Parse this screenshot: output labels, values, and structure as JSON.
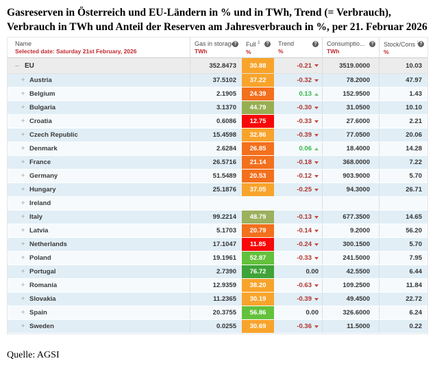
{
  "title": "Gasreserven in Österreich und EU-Ländern in % und in TWh, Trend (= Verbrauch), Verbrauch in TWh und Anteil der Reserven am Jahresverbrauch in %, per 21. Februar 2026",
  "source": "Quelle: AGSI",
  "icons": {
    "help": "?",
    "expand": "+",
    "collapse": "–"
  },
  "colors": {
    "orange": "#f8a42c",
    "dark_orange": "#f3701d",
    "red": "#f80808",
    "olive": "#97ae52",
    "green": "#64c13c",
    "dark_green": "#3fa338",
    "trend_down": "#b2342c",
    "trend_up": "#2fb847",
    "header_sub_red": "#c2282d",
    "row_blue": "#e1eef6",
    "row_white": "#f6fafc",
    "total_row": "#ececec"
  },
  "table": {
    "columns": [
      {
        "label": "Name",
        "sub": "Selected date: Saturday 21st February, 2026"
      },
      {
        "label": "Gas in storage",
        "sub": "TWh"
      },
      {
        "label": "Full",
        "sup": "1",
        "sub": "%"
      },
      {
        "label": "Trend",
        "sub": "%"
      },
      {
        "label": "Consumptio...",
        "sub": "TWh"
      },
      {
        "label": "Stock/Cons",
        "sup": "3",
        "sub": "%"
      }
    ],
    "rows": [
      {
        "name": "EU",
        "total": true,
        "gas": "352.8473",
        "full": "30.88",
        "full_color": "#f8a42c",
        "trend": "-0.21",
        "trend_dir": "down",
        "cons": "3519.0000",
        "stock": "10.03"
      },
      {
        "name": "Austria",
        "gas": "37.5102",
        "full": "37.22",
        "full_color": "#f8a42c",
        "trend": "-0.32",
        "trend_dir": "down",
        "cons": "78.2000",
        "stock": "47.97"
      },
      {
        "name": "Belgium",
        "gas": "2.1905",
        "full": "24.39",
        "full_color": "#f3701d",
        "trend": "0.13",
        "trend_dir": "up",
        "cons": "152.9500",
        "stock": "1.43"
      },
      {
        "name": "Bulgaria",
        "gas": "3.1370",
        "full": "44.79",
        "full_color": "#97ae52",
        "trend": "-0.30",
        "trend_dir": "down",
        "cons": "31.0500",
        "stock": "10.10"
      },
      {
        "name": "Croatia",
        "gas": "0.6086",
        "full": "12.75",
        "full_color": "#f80808",
        "trend": "-0.33",
        "trend_dir": "down",
        "cons": "27.6000",
        "stock": "2.21"
      },
      {
        "name": "Czech Republic",
        "gas": "15.4598",
        "full": "32.86",
        "full_color": "#f8a42c",
        "trend": "-0.39",
        "trend_dir": "down",
        "cons": "77.0500",
        "stock": "20.06"
      },
      {
        "name": "Denmark",
        "gas": "2.6284",
        "full": "26.85",
        "full_color": "#f3701d",
        "trend": "0.06",
        "trend_dir": "up",
        "cons": "18.4000",
        "stock": "14.28"
      },
      {
        "name": "France",
        "gas": "26.5716",
        "full": "21.14",
        "full_color": "#f3701d",
        "trend": "-0.18",
        "trend_dir": "down",
        "cons": "368.0000",
        "stock": "7.22"
      },
      {
        "name": "Germany",
        "gas": "51.5489",
        "full": "20.53",
        "full_color": "#f3701d",
        "trend": "-0.12",
        "trend_dir": "down",
        "cons": "903.9000",
        "stock": "5.70"
      },
      {
        "name": "Hungary",
        "gas": "25.1876",
        "full": "37.05",
        "full_color": "#f8a42c",
        "trend": "-0.25",
        "trend_dir": "down",
        "cons": "94.3000",
        "stock": "26.71"
      },
      {
        "name": "Ireland"
      },
      {
        "name": "Italy",
        "gas": "99.2214",
        "full": "48.79",
        "full_color": "#9cb05e",
        "trend": "-0.13",
        "trend_dir": "down",
        "cons": "677.3500",
        "stock": "14.65"
      },
      {
        "name": "Latvia",
        "gas": "5.1703",
        "full": "20.79",
        "full_color": "#f3701d",
        "trend": "-0.14",
        "trend_dir": "down",
        "cons": "9.2000",
        "stock": "56.20"
      },
      {
        "name": "Netherlands",
        "gas": "17.1047",
        "full": "11.85",
        "full_color": "#f80808",
        "trend": "-0.24",
        "trend_dir": "down",
        "cons": "300.1500",
        "stock": "5.70"
      },
      {
        "name": "Poland",
        "gas": "19.1961",
        "full": "52.87",
        "full_color": "#64c13c",
        "trend": "-0.33",
        "trend_dir": "down",
        "cons": "241.5000",
        "stock": "7.95"
      },
      {
        "name": "Portugal",
        "gas": "2.7390",
        "full": "76.72",
        "full_color": "#3fa338",
        "trend": "0.00",
        "trend_dir": "flat",
        "cons": "42.5500",
        "stock": "6.44"
      },
      {
        "name": "Romania",
        "gas": "12.9359",
        "full": "38.20",
        "full_color": "#f8a42c",
        "trend": "-0.63",
        "trend_dir": "down",
        "cons": "109.2500",
        "stock": "11.84"
      },
      {
        "name": "Slovakia",
        "gas": "11.2365",
        "full": "30.19",
        "full_color": "#f8a42c",
        "trend": "-0.39",
        "trend_dir": "down",
        "cons": "49.4500",
        "stock": "22.72"
      },
      {
        "name": "Spain",
        "gas": "20.3755",
        "full": "56.86",
        "full_color": "#64c13c",
        "trend": "0.00",
        "trend_dir": "flat",
        "cons": "326.6000",
        "stock": "6.24"
      },
      {
        "name": "Sweden",
        "gas": "0.0255",
        "full": "30.69",
        "full_color": "#f8a42c",
        "trend": "-0.36",
        "trend_dir": "down",
        "cons": "11.5000",
        "stock": "0.22"
      }
    ]
  },
  "chart_data": {
    "type": "table",
    "title": "Gasreserven in Österreich und EU-Ländern in % und in TWh, Trend (= Verbrauch), Verbrauch in TWh und Anteil der Reserven am Jahresverbrauch in %, per 21. Februar 2026",
    "source": "Quelle: AGSI",
    "selected_date": "Saturday 21st February, 2026",
    "columns": [
      "Name",
      "Gas in storage (TWh)",
      "Full (%)",
      "Trend (%)",
      "Consumption (TWh)",
      "Stock/Cons (%)"
    ],
    "rows": [
      [
        "EU",
        352.8473,
        30.88,
        -0.21,
        3519.0,
        10.03
      ],
      [
        "Austria",
        37.5102,
        37.22,
        -0.32,
        78.2,
        47.97
      ],
      [
        "Belgium",
        2.1905,
        24.39,
        0.13,
        152.95,
        1.43
      ],
      [
        "Bulgaria",
        3.137,
        44.79,
        -0.3,
        31.05,
        10.1
      ],
      [
        "Croatia",
        0.6086,
        12.75,
        -0.33,
        27.6,
        2.21
      ],
      [
        "Czech Republic",
        15.4598,
        32.86,
        -0.39,
        77.05,
        20.06
      ],
      [
        "Denmark",
        2.6284,
        26.85,
        0.06,
        18.4,
        14.28
      ],
      [
        "France",
        26.5716,
        21.14,
        -0.18,
        368.0,
        7.22
      ],
      [
        "Germany",
        51.5489,
        20.53,
        -0.12,
        903.9,
        5.7
      ],
      [
        "Hungary",
        25.1876,
        37.05,
        -0.25,
        94.3,
        26.71
      ],
      [
        "Ireland",
        null,
        null,
        null,
        null,
        null
      ],
      [
        "Italy",
        99.2214,
        48.79,
        -0.13,
        677.35,
        14.65
      ],
      [
        "Latvia",
        5.1703,
        20.79,
        -0.14,
        9.2,
        56.2
      ],
      [
        "Netherlands",
        17.1047,
        11.85,
        -0.24,
        300.15,
        5.7
      ],
      [
        "Poland",
        19.1961,
        52.87,
        -0.33,
        241.5,
        7.95
      ],
      [
        "Portugal",
        2.739,
        76.72,
        0.0,
        42.55,
        6.44
      ],
      [
        "Romania",
        12.9359,
        38.2,
        -0.63,
        109.25,
        11.84
      ],
      [
        "Slovakia",
        11.2365,
        30.19,
        -0.39,
        49.45,
        22.72
      ],
      [
        "Spain",
        20.3755,
        56.86,
        0.0,
        326.6,
        6.24
      ],
      [
        "Sweden",
        0.0255,
        30.69,
        -0.36,
        11.5,
        0.22
      ]
    ]
  }
}
